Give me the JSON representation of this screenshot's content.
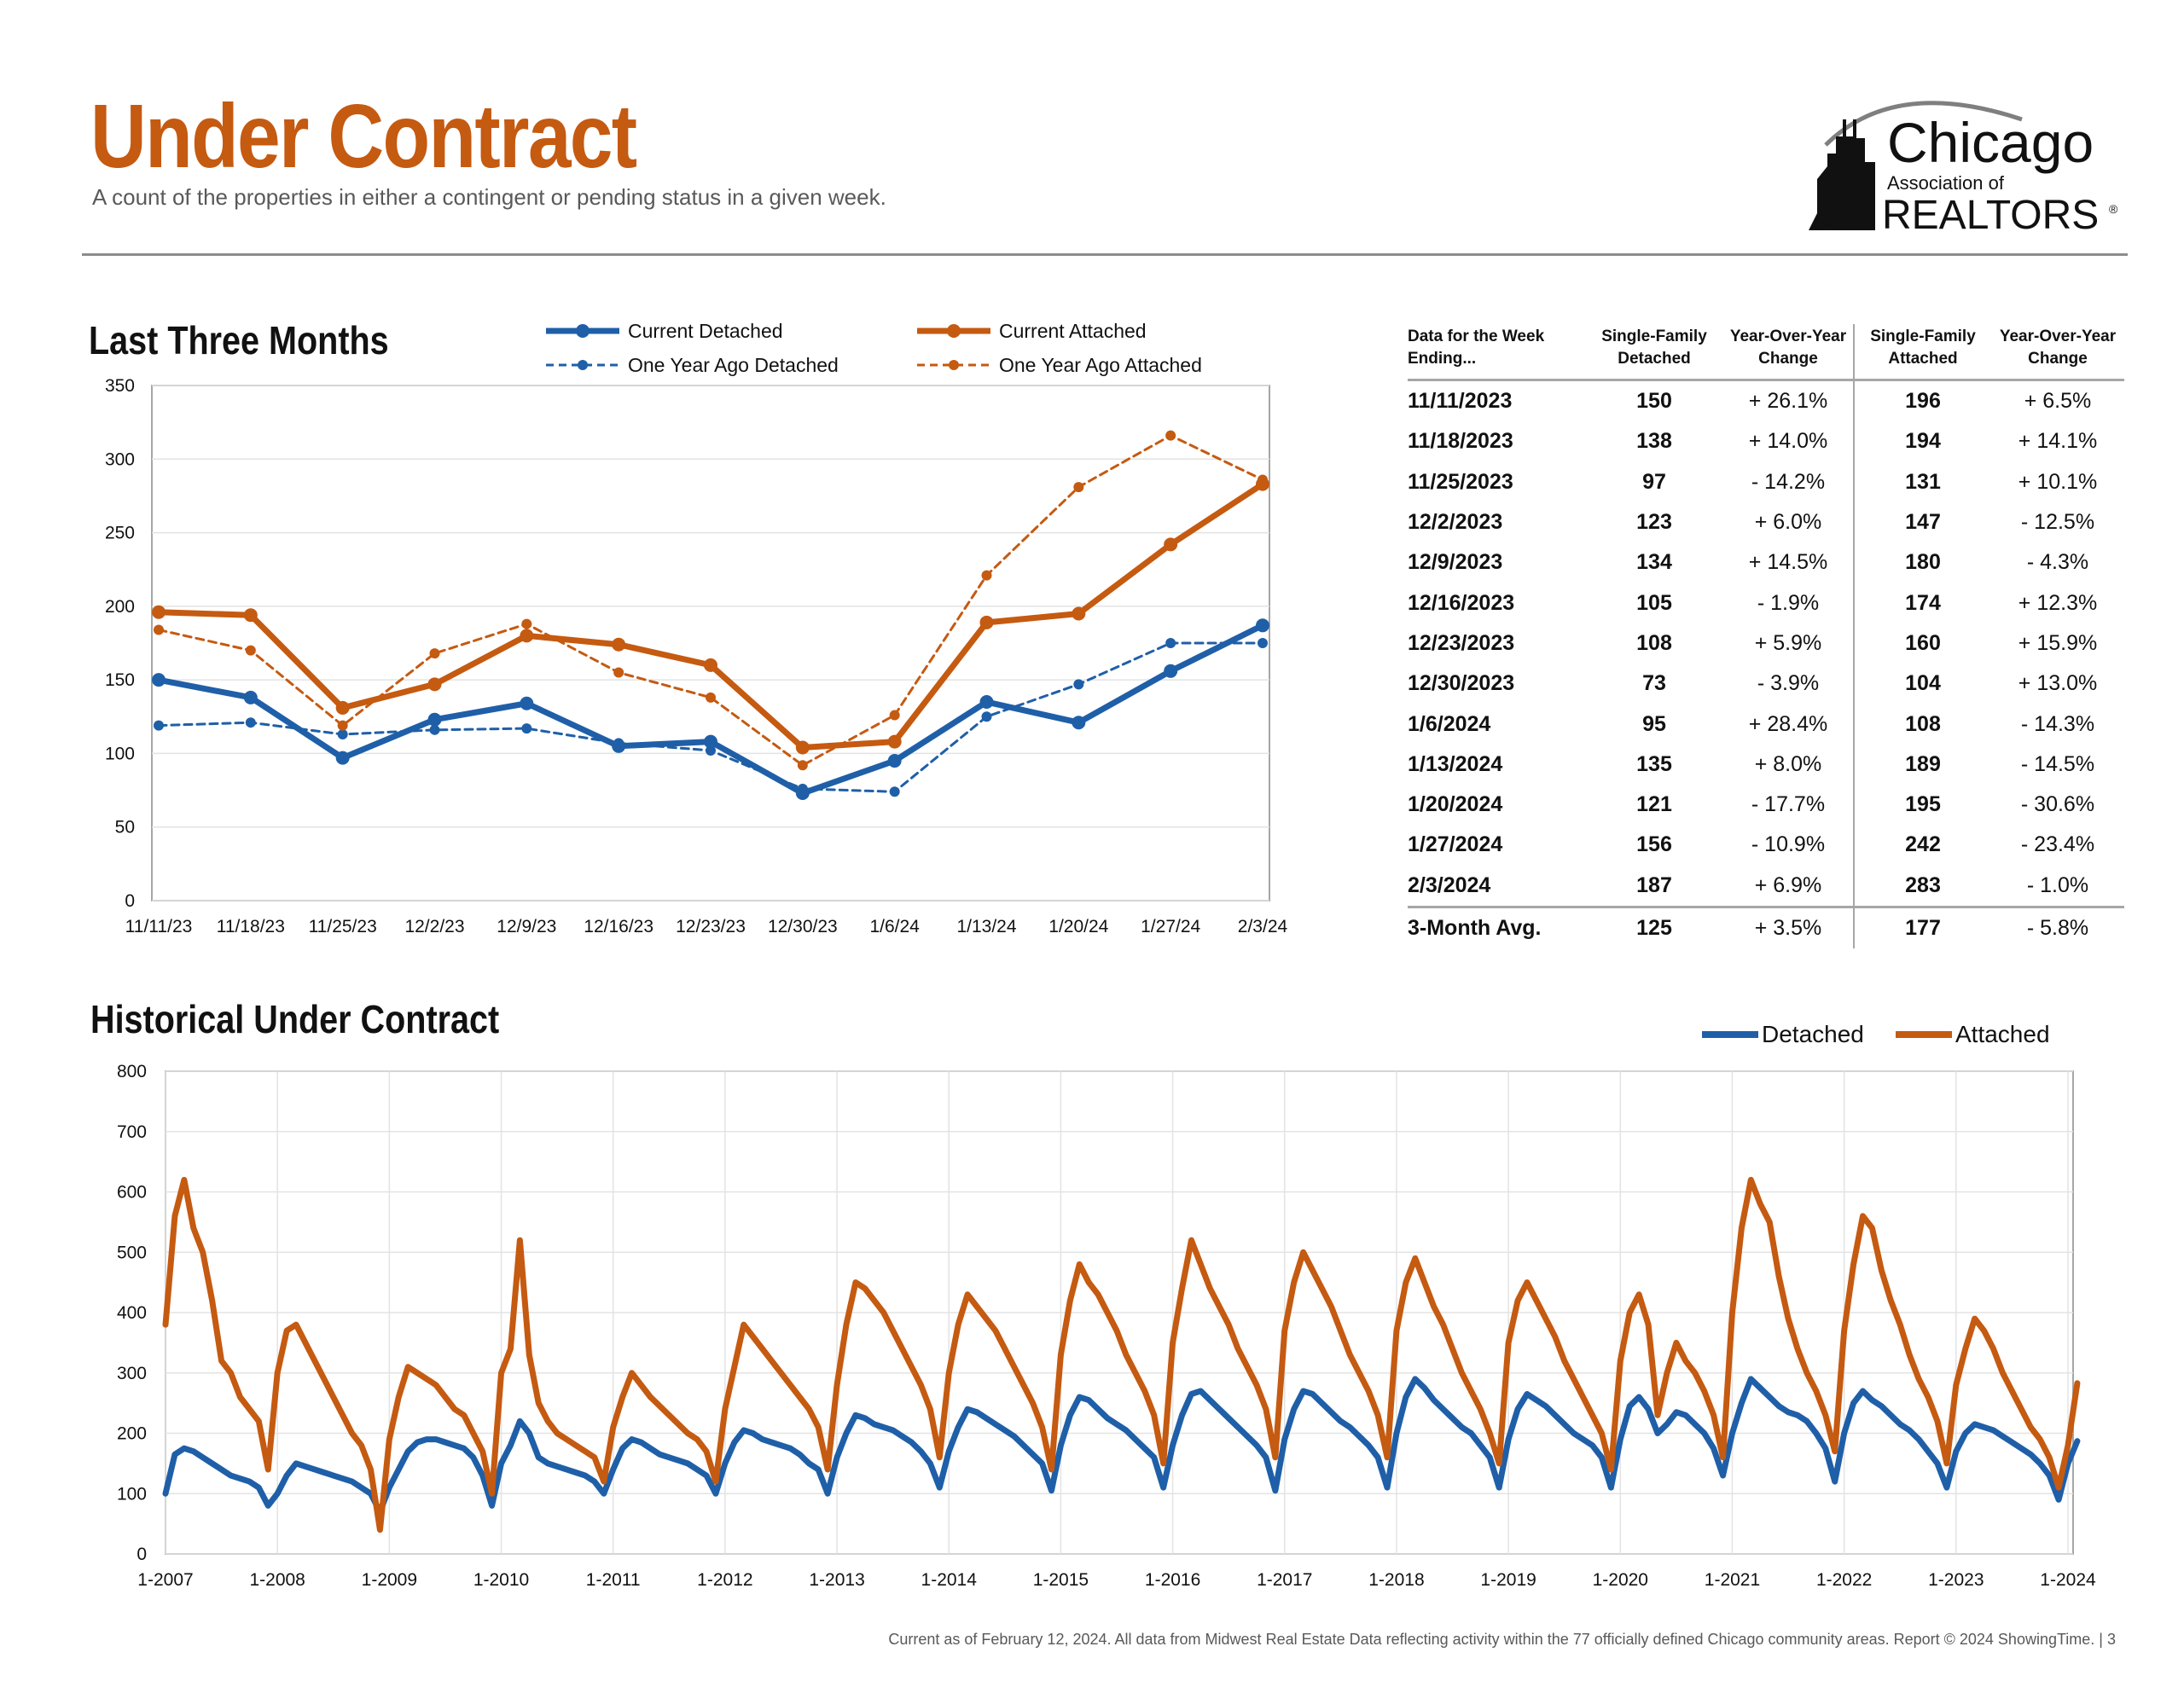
{
  "header": {
    "title": "Under Contract",
    "subtitle": "A count of the properties in either a contingent or pending status in a given week."
  },
  "logo": {
    "line1": "Chicago",
    "line2": "Association of",
    "line3": "REALTORS",
    "mark": "®"
  },
  "colors": {
    "detached": "#1f5fa8",
    "attached": "#c55a11",
    "title": "#c55a11",
    "grid": "#e3e3e3"
  },
  "sections": {
    "recent_title": "Last Three Months",
    "historical_title": "Historical Under Contract"
  },
  "table": {
    "headers": [
      "Data for the Week Ending...",
      "Single-Family Detached",
      "Year-Over-Year Change",
      "Single-Family Attached",
      "Year-Over-Year Change"
    ],
    "rows": [
      [
        "11/11/2023",
        "150",
        "+ 26.1%",
        "196",
        "+ 6.5%"
      ],
      [
        "11/18/2023",
        "138",
        "+ 14.0%",
        "194",
        "+ 14.1%"
      ],
      [
        "11/25/2023",
        "97",
        "- 14.2%",
        "131",
        "+ 10.1%"
      ],
      [
        "12/2/2023",
        "123",
        "+ 6.0%",
        "147",
        "- 12.5%"
      ],
      [
        "12/9/2023",
        "134",
        "+ 14.5%",
        "180",
        "- 4.3%"
      ],
      [
        "12/16/2023",
        "105",
        "- 1.9%",
        "174",
        "+ 12.3%"
      ],
      [
        "12/23/2023",
        "108",
        "+ 5.9%",
        "160",
        "+ 15.9%"
      ],
      [
        "12/30/2023",
        "73",
        "- 3.9%",
        "104",
        "+ 13.0%"
      ],
      [
        "1/6/2024",
        "95",
        "+ 28.4%",
        "108",
        "- 14.3%"
      ],
      [
        "1/13/2024",
        "135",
        "+ 8.0%",
        "189",
        "- 14.5%"
      ],
      [
        "1/20/2024",
        "121",
        "- 17.7%",
        "195",
        "- 30.6%"
      ],
      [
        "1/27/2024",
        "156",
        "- 10.9%",
        "242",
        "- 23.4%"
      ],
      [
        "2/3/2024",
        "187",
        "+ 6.9%",
        "283",
        "- 1.0%"
      ]
    ],
    "avg_row": [
      "3-Month Avg.",
      "125",
      "+ 3.5%",
      "177",
      "- 5.8%"
    ]
  },
  "chart_data": [
    {
      "type": "line",
      "title": "Last Three Months",
      "categories": [
        "11/11/23",
        "11/18/23",
        "11/25/23",
        "12/2/23",
        "12/9/23",
        "12/16/23",
        "12/23/23",
        "12/30/23",
        "1/6/24",
        "1/13/24",
        "1/20/24",
        "1/27/24",
        "2/3/24"
      ],
      "ylim": [
        0,
        350
      ],
      "yticks": [
        0,
        50,
        100,
        150,
        200,
        250,
        300,
        350
      ],
      "grid": true,
      "legend": "top",
      "series": [
        {
          "name": "Current Detached",
          "values": [
            150,
            138,
            97,
            123,
            134,
            105,
            108,
            73,
            95,
            135,
            121,
            156,
            187
          ],
          "color": "#1f5fa8",
          "style": "solid"
        },
        {
          "name": "Current Attached",
          "values": [
            196,
            194,
            131,
            147,
            180,
            174,
            160,
            104,
            108,
            189,
            195,
            242,
            283
          ],
          "color": "#c55a11",
          "style": "solid"
        },
        {
          "name": "One Year Ago Detached",
          "values": [
            119,
            121,
            113,
            116,
            117,
            107,
            102,
            76,
            74,
            125,
            147,
            175,
            175
          ],
          "color": "#1f5fa8",
          "style": "dashed"
        },
        {
          "name": "One Year Ago Attached",
          "values": [
            184,
            170,
            119,
            168,
            188,
            155,
            138,
            92,
            126,
            221,
            281,
            316,
            286
          ],
          "color": "#c55a11",
          "style": "dashed"
        }
      ]
    },
    {
      "type": "line",
      "title": "Historical Under Contract",
      "x_ticks": [
        "1-2007",
        "1-2008",
        "1-2009",
        "1-2010",
        "1-2011",
        "1-2012",
        "1-2013",
        "1-2014",
        "1-2015",
        "1-2016",
        "1-2017",
        "1-2018",
        "1-2019",
        "1-2020",
        "1-2021",
        "1-2022",
        "1-2023",
        "1-2024"
      ],
      "ylim": [
        0,
        800
      ],
      "yticks": [
        0,
        100,
        200,
        300,
        400,
        500,
        600,
        700,
        800
      ],
      "grid": true,
      "legend": "top-right",
      "x_unit": "monthly, Jan 2007 to Feb 2024",
      "series": [
        {
          "name": "Detached",
          "color": "#1f5fa8",
          "values": [
            100,
            165,
            175,
            170,
            160,
            150,
            140,
            130,
            125,
            120,
            110,
            80,
            100,
            130,
            150,
            145,
            140,
            135,
            130,
            125,
            120,
            110,
            100,
            70,
            110,
            140,
            170,
            185,
            190,
            190,
            185,
            180,
            175,
            160,
            130,
            80,
            150,
            180,
            220,
            200,
            160,
            150,
            145,
            140,
            135,
            130,
            120,
            100,
            140,
            175,
            190,
            185,
            175,
            165,
            160,
            155,
            150,
            140,
            130,
            100,
            150,
            185,
            205,
            200,
            190,
            185,
            180,
            175,
            165,
            150,
            140,
            100,
            160,
            200,
            230,
            225,
            215,
            210,
            205,
            195,
            185,
            170,
            150,
            110,
            170,
            210,
            240,
            235,
            225,
            215,
            205,
            195,
            180,
            165,
            150,
            105,
            180,
            230,
            260,
            255,
            240,
            225,
            215,
            205,
            190,
            175,
            160,
            110,
            180,
            230,
            265,
            270,
            255,
            240,
            225,
            210,
            195,
            180,
            160,
            105,
            190,
            240,
            270,
            265,
            250,
            235,
            220,
            210,
            195,
            180,
            160,
            110,
            200,
            260,
            290,
            275,
            255,
            240,
            225,
            210,
            200,
            180,
            160,
            110,
            190,
            240,
            265,
            255,
            245,
            230,
            215,
            200,
            190,
            180,
            160,
            110,
            190,
            245,
            260,
            240,
            200,
            215,
            235,
            230,
            215,
            200,
            175,
            130,
            200,
            250,
            290,
            275,
            260,
            245,
            235,
            230,
            220,
            200,
            175,
            120,
            200,
            250,
            270,
            255,
            245,
            230,
            215,
            205,
            190,
            170,
            150,
            110,
            170,
            200,
            215,
            210,
            205,
            195,
            185,
            175,
            165,
            150,
            130,
            90,
            150,
            187
          ]
        },
        {
          "name": "Attached",
          "color": "#c55a11",
          "values": [
            380,
            560,
            620,
            540,
            500,
            420,
            320,
            300,
            260,
            240,
            220,
            140,
            300,
            370,
            380,
            350,
            320,
            290,
            260,
            230,
            200,
            180,
            140,
            40,
            190,
            260,
            310,
            300,
            290,
            280,
            260,
            240,
            230,
            200,
            170,
            100,
            300,
            340,
            520,
            330,
            250,
            220,
            200,
            190,
            180,
            170,
            160,
            120,
            210,
            260,
            300,
            280,
            260,
            245,
            230,
            215,
            200,
            190,
            170,
            120,
            240,
            310,
            380,
            360,
            340,
            320,
            300,
            280,
            260,
            240,
            210,
            140,
            280,
            380,
            450,
            440,
            420,
            400,
            370,
            340,
            310,
            280,
            240,
            160,
            300,
            380,
            430,
            410,
            390,
            370,
            340,
            310,
            280,
            250,
            210,
            140,
            330,
            420,
            480,
            450,
            430,
            400,
            370,
            330,
            300,
            270,
            230,
            150,
            350,
            440,
            520,
            480,
            440,
            410,
            380,
            340,
            310,
            280,
            240,
            160,
            370,
            450,
            500,
            470,
            440,
            410,
            370,
            330,
            300,
            270,
            230,
            160,
            370,
            450,
            490,
            450,
            410,
            380,
            340,
            300,
            270,
            240,
            200,
            150,
            350,
            420,
            450,
            420,
            390,
            360,
            320,
            290,
            260,
            230,
            200,
            140,
            320,
            400,
            430,
            380,
            230,
            300,
            350,
            320,
            300,
            270,
            230,
            160,
            400,
            540,
            620,
            580,
            550,
            460,
            390,
            340,
            300,
            270,
            230,
            170,
            370,
            480,
            560,
            540,
            470,
            420,
            380,
            330,
            290,
            260,
            220,
            150,
            280,
            340,
            390,
            370,
            340,
            300,
            270,
            240,
            210,
            190,
            160,
            110,
            180,
            283
          ]
        }
      ]
    }
  ],
  "footer": {
    "text": "Current as of February 12, 2024. All data from Midwest Real Estate Data reflecting activity within the 77 officially defined Chicago community areas. Report © 2024 ShowingTime.  |  3"
  }
}
